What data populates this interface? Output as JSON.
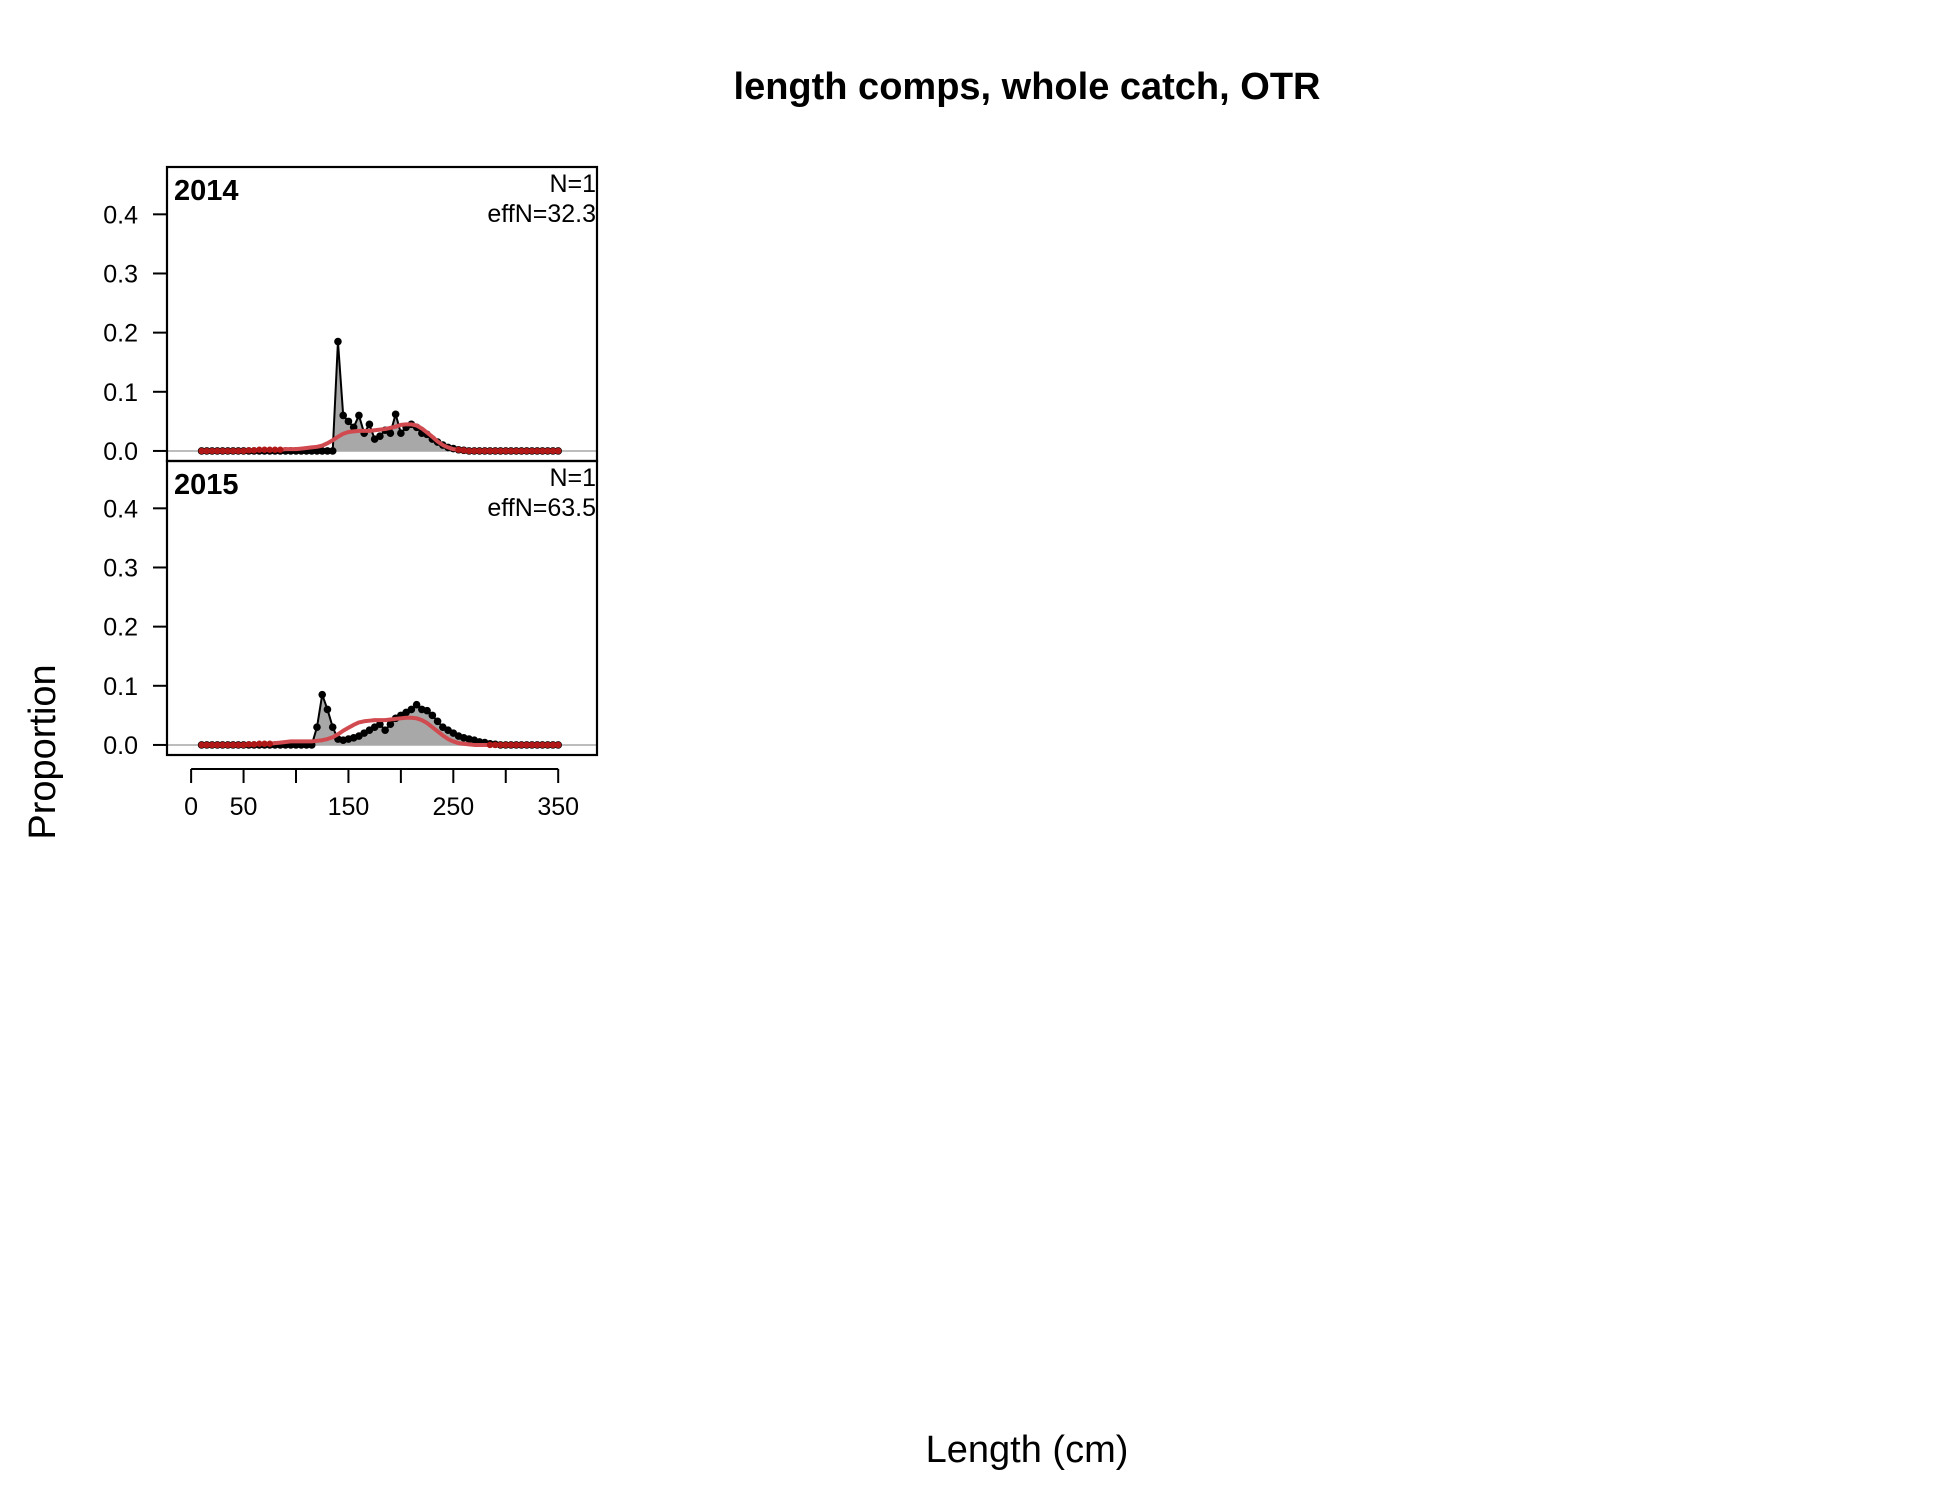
{
  "chart_data": {
    "type": "area",
    "title": "length comps, whole catch, OTR",
    "xlabel": "Length (cm)",
    "ylabel": "Proportion",
    "xlim": [
      -23,
      387
    ],
    "ylim": [
      -0.017,
      0.48
    ],
    "x_ticks": [
      0,
      50,
      100,
      150,
      200,
      250,
      300,
      350
    ],
    "x_tick_labels": [
      "0",
      "50",
      "",
      "150",
      "",
      "250",
      "",
      "350"
    ],
    "y_ticks": [
      0.0,
      0.1,
      0.2,
      0.3,
      0.4
    ],
    "y_tick_labels": [
      "0.0",
      "0.1",
      "0.2",
      "0.3",
      "0.4"
    ],
    "colors": {
      "observed_fill": "#a8a8a8",
      "observed_points": "#000000",
      "expected_line": "#d04a4f",
      "expected_points": "#b01818",
      "zero_line": "#bdbdbd"
    },
    "x": [
      10,
      15,
      20,
      25,
      30,
      35,
      40,
      45,
      50,
      55,
      60,
      65,
      70,
      75,
      80,
      85,
      90,
      95,
      100,
      105,
      110,
      115,
      120,
      125,
      130,
      135,
      140,
      145,
      150,
      155,
      160,
      165,
      170,
      175,
      180,
      185,
      190,
      195,
      200,
      205,
      210,
      215,
      220,
      225,
      230,
      235,
      240,
      245,
      250,
      255,
      260,
      265,
      270,
      275,
      280,
      285,
      290,
      295,
      300,
      305,
      310,
      315,
      320,
      325,
      330,
      335,
      340,
      345,
      350
    ],
    "panels": [
      {
        "year": "2014",
        "n_label": "N=1",
        "effn_label": "effN=32.3",
        "observed": [
          0,
          0,
          0,
          0,
          0,
          0,
          0,
          0,
          0,
          0,
          0,
          0,
          0,
          0,
          0,
          0,
          0,
          0,
          0,
          0,
          0,
          0,
          0,
          0,
          0,
          0,
          0.185,
          0.06,
          0.05,
          0.04,
          0.06,
          0.03,
          0.045,
          0.02,
          0.025,
          0.035,
          0.03,
          0.062,
          0.03,
          0.04,
          0.045,
          0.04,
          0.03,
          0.028,
          0.02,
          0.015,
          0.01,
          0.006,
          0.004,
          0.002,
          0.001,
          0,
          0,
          0,
          0,
          0,
          0,
          0,
          0,
          0,
          0,
          0,
          0,
          0,
          0,
          0,
          0,
          0,
          0
        ],
        "expected": [
          0,
          0,
          0,
          0,
          0,
          0,
          0,
          0,
          0,
          0.001,
          0.001,
          0.002,
          0.002,
          0.002,
          0.002,
          0.002,
          0.003,
          0.003,
          0.003,
          0.004,
          0.005,
          0.006,
          0.007,
          0.009,
          0.013,
          0.018,
          0.024,
          0.029,
          0.032,
          0.033,
          0.034,
          0.034,
          0.034,
          0.035,
          0.036,
          0.037,
          0.039,
          0.041,
          0.044,
          0.045,
          0.045,
          0.043,
          0.038,
          0.031,
          0.024,
          0.016,
          0.01,
          0.006,
          0.003,
          0.002,
          0.001,
          0,
          0,
          0,
          0,
          0,
          0,
          0,
          0,
          0,
          0,
          0,
          0,
          0,
          0,
          0,
          0,
          0,
          0
        ]
      },
      {
        "year": "2015",
        "n_label": "N=1",
        "effn_label": "effN=63.5",
        "observed": [
          0,
          0,
          0,
          0,
          0,
          0,
          0,
          0,
          0,
          0,
          0,
          0,
          0,
          0,
          0,
          0,
          0,
          0,
          0,
          0,
          0,
          0,
          0.03,
          0.085,
          0.06,
          0.03,
          0.01,
          0.008,
          0.01,
          0.012,
          0.015,
          0.02,
          0.025,
          0.03,
          0.035,
          0.025,
          0.035,
          0.045,
          0.05,
          0.055,
          0.06,
          0.068,
          0.06,
          0.058,
          0.05,
          0.04,
          0.03,
          0.025,
          0.02,
          0.015,
          0.012,
          0.01,
          0.008,
          0.005,
          0.004,
          0.002,
          0.001,
          0,
          0,
          0,
          0,
          0,
          0,
          0,
          0,
          0,
          0,
          0,
          0
        ],
        "expected": [
          0,
          0,
          0,
          0,
          0,
          0,
          0,
          0,
          0,
          0.001,
          0.001,
          0.002,
          0.002,
          0.002,
          0.003,
          0.004,
          0.005,
          0.006,
          0.006,
          0.006,
          0.006,
          0.006,
          0.007,
          0.008,
          0.01,
          0.013,
          0.018,
          0.024,
          0.029,
          0.034,
          0.038,
          0.04,
          0.041,
          0.042,
          0.042,
          0.042,
          0.043,
          0.044,
          0.045,
          0.046,
          0.046,
          0.045,
          0.042,
          0.037,
          0.03,
          0.023,
          0.016,
          0.01,
          0.006,
          0.003,
          0.002,
          0.001,
          0,
          0,
          0,
          0,
          0,
          0,
          0,
          0,
          0,
          0,
          0,
          0,
          0,
          0,
          0,
          0,
          0
        ]
      }
    ]
  }
}
